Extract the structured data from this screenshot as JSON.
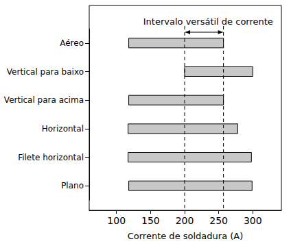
{
  "chart_data": {
    "type": "bar",
    "orientation": "horizontal",
    "xlabel": "Corrente de soldadura (A)",
    "categories": [
      "Aéreo",
      "Vertical para baixo",
      "Vertical para acima",
      "Horizontal",
      "Filete horizontal",
      "Plano"
    ],
    "values": [
      [
        118,
        257
      ],
      [
        200,
        300
      ],
      [
        118,
        257
      ],
      [
        117,
        278
      ],
      [
        117,
        298
      ],
      [
        118,
        299
      ]
    ],
    "color": "#c8c8c8",
    "xlim": [
      60,
      342
    ],
    "xticks": [
      100,
      150,
      200,
      250,
      300
    ],
    "grid": false,
    "annotation": {
      "text": "Intervalo versátil de corrente",
      "range": [
        200,
        257
      ]
    }
  }
}
